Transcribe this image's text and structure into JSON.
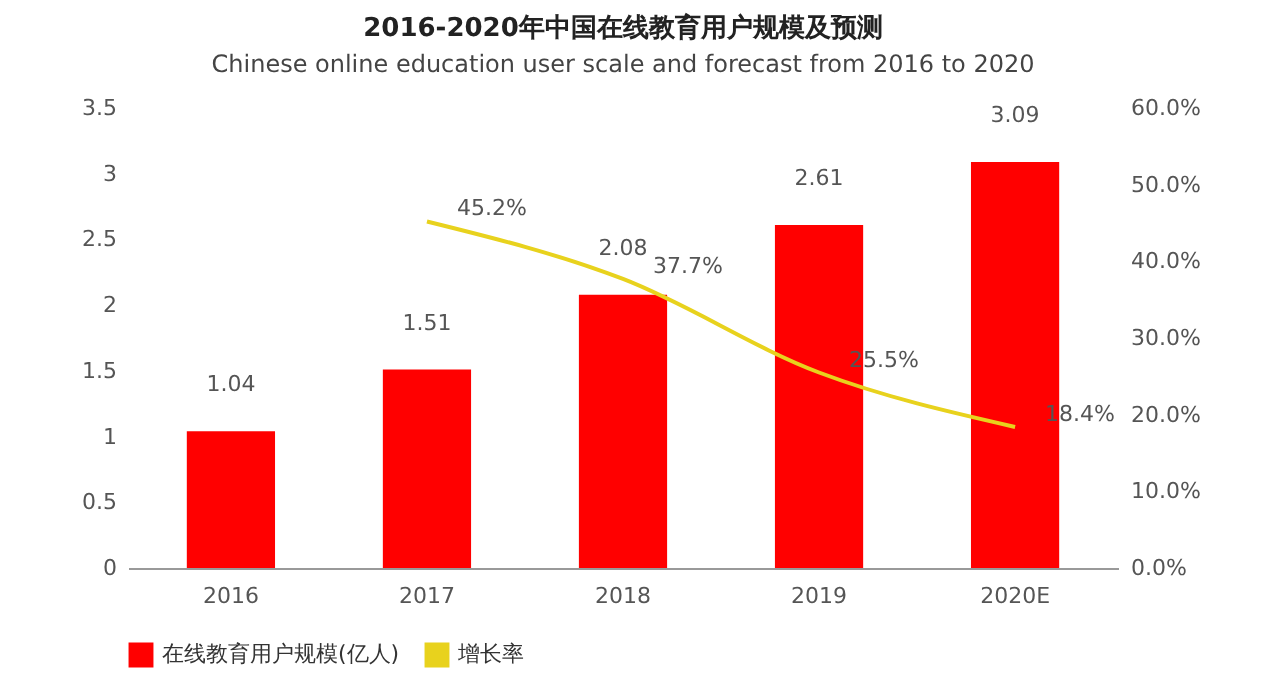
{
  "chart_data": {
    "type": "bar",
    "title": "2016-2020年中国在线教育用户规模及预测",
    "subtitle": "Chinese online education user scale and forecast from 2016 to 2020",
    "categories": [
      "2016",
      "2017",
      "2018",
      "2019",
      "2020E"
    ],
    "series": [
      {
        "name": "在线教育用户规模(亿人)",
        "color": "#ff0000",
        "values": [
          1.04,
          1.51,
          2.08,
          2.61,
          3.09
        ],
        "value_labels": [
          "1.04",
          "1.51",
          "2.08",
          "2.61",
          "3.09"
        ]
      },
      {
        "name": "增长率",
        "type": "line",
        "axis": "y2",
        "color": "#e8d21d",
        "values": [
          null,
          45.2,
          37.7,
          25.5,
          18.4
        ],
        "value_labels": [
          null,
          "45.2%",
          "37.7%",
          "25.5%",
          "18.4%"
        ]
      }
    ],
    "ylim": [
      0,
      3.5
    ],
    "yticks": [
      0,
      0.5,
      1,
      1.5,
      2,
      2.5,
      3,
      3.5
    ],
    "y2lim": [
      0,
      60
    ],
    "y2ticks": [
      {
        "value": 0,
        "label": "0.0%"
      },
      {
        "value": 10,
        "label": "10.0%"
      },
      {
        "value": 20,
        "label": "20.0%"
      },
      {
        "value": 30,
        "label": "30.0%"
      },
      {
        "value": 40,
        "label": "40.0%"
      },
      {
        "value": 50,
        "label": "50.0%"
      },
      {
        "value": 60,
        "label": "60.0%"
      }
    ],
    "grid": false,
    "legend": "bottom"
  }
}
